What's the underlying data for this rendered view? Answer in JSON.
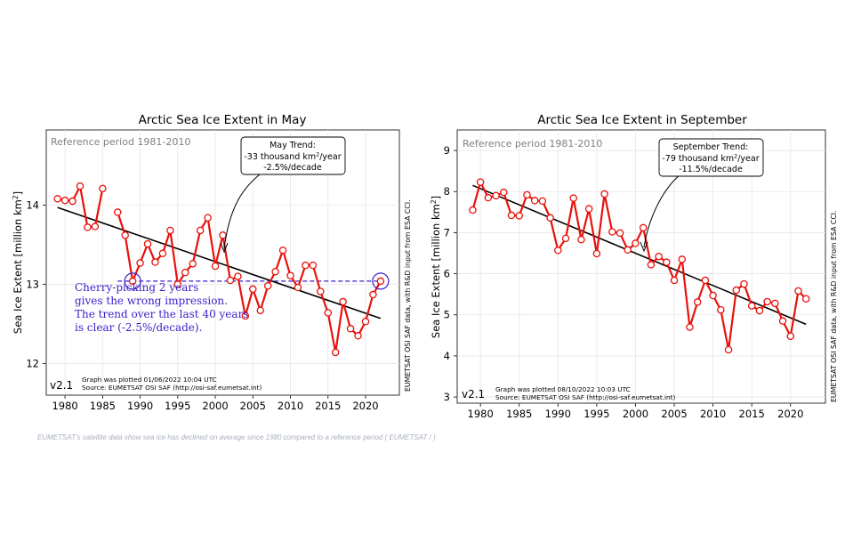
{
  "caption": "EUMETSAT's satellite data show sea ice has declined on average since 1980 compared to a reference period ( EUMETSAT / )",
  "colors": {
    "series": "#e8120c",
    "trend": "#000000",
    "reference": "#3a1ec8",
    "annotation": "#3a1ec8",
    "grid": "#e6e6e6",
    "muted": "#808080"
  },
  "chart_data": [
    {
      "type": "line",
      "title": "Arctic Sea Ice Extent in May",
      "xlabel": "",
      "ylabel": "Sea Ice Extent [million km²]",
      "ylabel_main": "Sea Ice Extent [million km",
      "ylabel_sup": "2",
      "ylabel_end": "]",
      "xlim": [
        1977.5,
        2024.5
      ],
      "ylim": [
        11.6,
        14.95
      ],
      "xticks": [
        1980,
        1985,
        1990,
        1995,
        2000,
        2005,
        2010,
        2015,
        2020
      ],
      "xtick_labels": [
        "1980",
        "1985",
        "1990",
        "1995",
        "2000",
        "2005",
        "2010",
        "2015",
        "2020"
      ],
      "yticks": [
        12,
        13,
        14
      ],
      "ytick_labels": [
        "12",
        "13",
        "14"
      ],
      "reference_period": "Reference period 1981-2010",
      "version": "v2.1",
      "footer_line1": "Graph was plotted 01/06/2022 10:04 UTC",
      "footer_line2": "Source: EUMETSAT OSI SAF (http://osi-saf.eumetsat.int)",
      "side_note": "EUMETSAT OSI SAF data, with R&D input from ESA CCI.",
      "trend_box": {
        "line1": "May Trend:",
        "line2_main": "-33 thousand km",
        "line2_sup": "2",
        "line2_end": "/year",
        "line3": "-2.5%/decade"
      },
      "trend_line": {
        "x": [
          1979,
          2022
        ],
        "y": [
          13.97,
          12.57
        ]
      },
      "reference_line": {
        "x": [
          1987,
          2022
        ],
        "y": 13.04
      },
      "annotation_text": [
        "Cherry-picking 2 years",
        "gives the wrong impression.",
        "The trend over the last 40 years",
        "is clear (-2.5%/decade)."
      ],
      "highlighted_years": [
        1989,
        2022
      ],
      "series": [
        {
          "name": "May extent",
          "x": [
            1979,
            1980,
            1981,
            1982,
            1983,
            1984,
            1985,
            1987,
            1988,
            1989,
            1990,
            1991,
            1992,
            1993,
            1994,
            1995,
            1996,
            1997,
            1998,
            1999,
            2000,
            2001,
            2002,
            2003,
            2004,
            2005,
            2006,
            2007,
            2008,
            2009,
            2010,
            2011,
            2012,
            2013,
            2014,
            2015,
            2016,
            2017,
            2018,
            2019,
            2020,
            2021,
            2022
          ],
          "values": [
            14.08,
            14.06,
            14.05,
            14.24,
            13.72,
            13.73,
            14.21,
            13.91,
            13.62,
            13.04,
            13.27,
            13.51,
            13.28,
            13.39,
            13.68,
            13.0,
            13.15,
            13.26,
            13.68,
            13.84,
            13.23,
            13.62,
            13.05,
            13.1,
            12.6,
            12.94,
            12.67,
            12.98,
            13.16,
            13.43,
            13.11,
            12.96,
            13.24,
            13.24,
            12.91,
            12.64,
            12.14,
            12.78,
            12.44,
            12.35,
            12.53,
            12.87,
            13.04
          ]
        }
      ]
    },
    {
      "type": "line",
      "title": "Arctic Sea Ice Extent in September",
      "xlabel": "",
      "ylabel": "Sea Ice Extent [million km²]",
      "ylabel_main": "Sea Ice Extent [million km",
      "ylabel_sup": "2",
      "ylabel_end": "]",
      "xlim": [
        1977,
        2024.5
      ],
      "ylim": [
        2.85,
        9.5
      ],
      "xticks": [
        1980,
        1985,
        1990,
        1995,
        2000,
        2005,
        2010,
        2015,
        2020
      ],
      "xtick_labels": [
        "1980",
        "1985",
        "1990",
        "1995",
        "2000",
        "2005",
        "2010",
        "2015",
        "2020"
      ],
      "yticks": [
        3,
        4,
        5,
        6,
        7,
        8,
        9
      ],
      "ytick_labels": [
        "3",
        "4",
        "5",
        "6",
        "7",
        "8",
        "9"
      ],
      "reference_period": "Reference period 1981-2010",
      "version": "v2.1",
      "footer_line1": "Graph was plotted 08/10/2022 10:03 UTC",
      "footer_line2": "Source: EUMETSAT OSI SAF (http://osi-saf.eumetsat.int)",
      "side_note": "EUMETSAT OSI SAF data, with R&D input from ESA CCI.",
      "trend_box": {
        "line1": "September Trend:",
        "line2_main": "-79 thousand km",
        "line2_sup": "2",
        "line2_end": "/year",
        "line3": "-11.5%/decade"
      },
      "trend_line": {
        "x": [
          1979,
          2022
        ],
        "y": [
          8.15,
          4.77
        ]
      },
      "series": [
        {
          "name": "September extent",
          "x": [
            1979,
            1980,
            1981,
            1982,
            1983,
            1984,
            1985,
            1986,
            1987,
            1988,
            1989,
            1990,
            1991,
            1992,
            1993,
            1994,
            1995,
            1996,
            1997,
            1998,
            1999,
            2000,
            2001,
            2002,
            2003,
            2004,
            2005,
            2006,
            2007,
            2008,
            2009,
            2010,
            2011,
            2012,
            2013,
            2014,
            2015,
            2016,
            2017,
            2018,
            2019,
            2020,
            2021,
            2022
          ],
          "values": [
            7.55,
            8.23,
            7.85,
            7.9,
            7.98,
            7.42,
            7.41,
            7.92,
            7.78,
            7.77,
            7.36,
            6.57,
            6.86,
            7.84,
            6.83,
            7.58,
            6.49,
            7.94,
            7.02,
            6.99,
            6.58,
            6.74,
            7.12,
            6.22,
            6.42,
            6.28,
            5.84,
            6.35,
            4.7,
            5.31,
            5.84,
            5.47,
            5.12,
            4.15,
            5.6,
            5.75,
            5.22,
            5.1,
            5.32,
            5.28,
            4.85,
            4.48,
            5.58,
            5.39
          ]
        }
      ]
    }
  ]
}
